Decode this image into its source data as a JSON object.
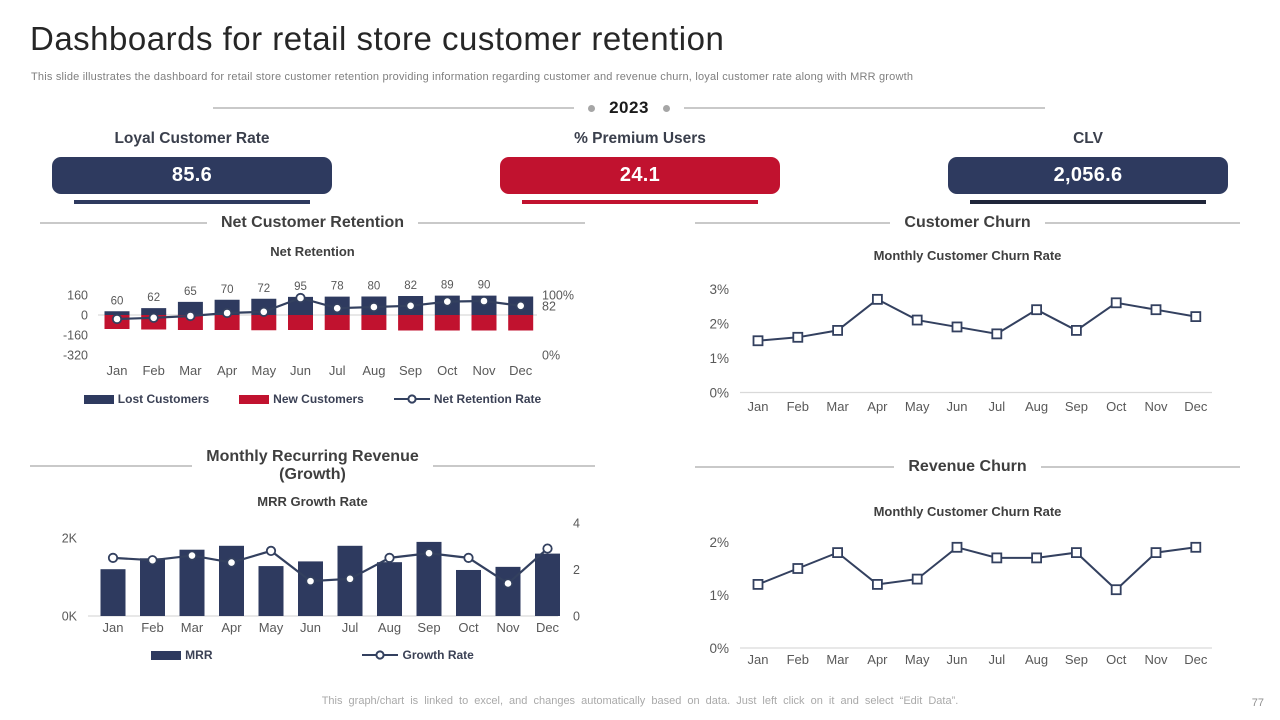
{
  "slide": {
    "title": "Dashboards for retail store customer retention",
    "subtitle": "This slide illustrates the dashboard for retail store customer retention providing information regarding customer and revenue churn, loyal customer rate along with MRR growth",
    "year": "2023",
    "footer": "This graph/chart is linked to excel, and changes automatically based on data. Just left click on it and select “Edit Data”.",
    "page_number": "77"
  },
  "colors": {
    "navy": "#2e3a5f",
    "red": "#c1122f",
    "line_navy": "#33405f",
    "axis_text": "#595959",
    "grid": "#d9d9d9",
    "divider": "#c9c9c9",
    "dot": "#a6a6a6"
  },
  "kpis": [
    {
      "label": "Loyal Customer Rate",
      "value": "85.6",
      "bg": "#2e3a5f",
      "underline": "#2e3a5f"
    },
    {
      "label": "% Premium Users",
      "value": "24.1",
      "bg": "#c1122f",
      "underline": "#c1122f"
    },
    {
      "label": "CLV",
      "value": "2,056.6",
      "bg": "#2e3a5f",
      "underline": "#20263a"
    }
  ],
  "chart_data": [
    {
      "id": "net_retention",
      "type": "combo",
      "section_title": "Net Customer Retention",
      "title": "Net Retention",
      "categories": [
        "Jan",
        "Feb",
        "Mar",
        "Apr",
        "May",
        "Jun",
        "Jul",
        "Aug",
        "Sep",
        "Oct",
        "Nov",
        "Dec"
      ],
      "left_axis": {
        "min": -320,
        "max": 160,
        "ticks": [
          {
            "label": "160",
            "value": 160
          },
          {
            "label": "0",
            "value": 0
          },
          {
            "label": "-160",
            "value": -160
          },
          {
            "label": "-320",
            "value": -320
          }
        ]
      },
      "right_axis": {
        "min": 0,
        "max": 100,
        "ticks": [
          {
            "label": "100%",
            "value": 100
          },
          {
            "label": "0%",
            "value": 0
          }
        ]
      },
      "series": [
        {
          "name": "Lost Customers",
          "type": "bar",
          "color": "#2e3a5f",
          "values": [
            30,
            55,
            105,
            122,
            130,
            145,
            147,
            148,
            152,
            155,
            155,
            148
          ]
        },
        {
          "name": "New Customers",
          "type": "bar",
          "color": "#c1122f",
          "values": [
            -112,
            -116,
            -120,
            -120,
            -122,
            -120,
            -120,
            -120,
            -124,
            -124,
            -124,
            -124
          ]
        },
        {
          "name": "Net Retention Rate",
          "type": "line",
          "marker": "circle",
          "color": "#33405f",
          "values": [
            60,
            62,
            65,
            70,
            72,
            95,
            78,
            80,
            82,
            89,
            90,
            82
          ],
          "show_labels": true,
          "last_label_at_right": true
        }
      ]
    },
    {
      "id": "customer_churn",
      "type": "line",
      "section_title": "Customer Churn",
      "title": "Monthly Customer Churn Rate",
      "categories": [
        "Jan",
        "Feb",
        "Mar",
        "Apr",
        "May",
        "Jun",
        "Jul",
        "Aug",
        "Sep",
        "Oct",
        "Nov",
        "Dec"
      ],
      "color": "#33405f",
      "marker": "square",
      "y_axis": {
        "min": 0,
        "max": 3,
        "ticks": [
          {
            "label": "3%",
            "value": 3
          },
          {
            "label": "2%",
            "value": 2
          },
          {
            "label": "1%",
            "value": 1
          },
          {
            "label": "0%",
            "value": 0
          }
        ]
      },
      "values": [
        1.5,
        1.6,
        1.8,
        2.7,
        2.1,
        1.9,
        1.7,
        2.4,
        1.8,
        2.6,
        2.4,
        2.2
      ]
    },
    {
      "id": "mrr_growth",
      "type": "combo",
      "section_title_lines": [
        "Monthly Recurring Revenue",
        "(Growth)"
      ],
      "title": "MRR Growth Rate",
      "categories": [
        "Jan",
        "Feb",
        "Mar",
        "Apr",
        "May",
        "Jun",
        "Jul",
        "Aug",
        "Sep",
        "Oct",
        "Nov",
        "Dec"
      ],
      "left_axis": {
        "min": 0,
        "max": 2,
        "ticks": [
          {
            "label": "2K",
            "value": 2
          },
          {
            "label": "0K",
            "value": 0
          }
        ]
      },
      "right_axis": {
        "min": 0,
        "max": 4,
        "ticks": [
          {
            "label": "4",
            "value": 4
          },
          {
            "label": "2",
            "value": 2
          },
          {
            "label": "0",
            "value": 0
          }
        ]
      },
      "series": [
        {
          "name": "MRR",
          "type": "bar",
          "color": "#2e3a5f",
          "values": [
            1.2,
            1.48,
            1.7,
            1.8,
            1.28,
            1.4,
            1.8,
            1.38,
            1.9,
            1.18,
            1.26,
            1.6
          ]
        },
        {
          "name": "Growth Rate",
          "type": "line",
          "marker": "circle",
          "color": "#33405f",
          "values": [
            2.5,
            2.4,
            2.6,
            2.3,
            2.8,
            1.5,
            1.6,
            2.5,
            2.7,
            2.5,
            1.4,
            2.9
          ]
        }
      ]
    },
    {
      "id": "revenue_churn",
      "type": "line",
      "section_title": "Revenue Churn",
      "title": "Monthly Customer Churn Rate",
      "categories": [
        "Jan",
        "Feb",
        "Mar",
        "Apr",
        "May",
        "Jun",
        "Jul",
        "Aug",
        "Sep",
        "Oct",
        "Nov",
        "Dec"
      ],
      "color": "#33405f",
      "marker": "square",
      "y_axis": {
        "min": 0,
        "max": 2,
        "ticks": [
          {
            "label": "2%",
            "value": 2
          },
          {
            "label": "1%",
            "value": 1
          },
          {
            "label": "0%",
            "value": 0
          }
        ]
      },
      "values": [
        1.2,
        1.5,
        1.8,
        1.2,
        1.3,
        1.9,
        1.7,
        1.7,
        1.8,
        1.1,
        1.8,
        1.9
      ]
    }
  ]
}
